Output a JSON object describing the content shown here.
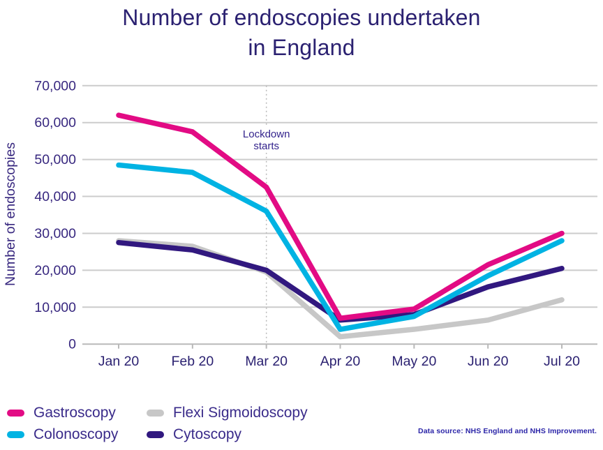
{
  "title": {
    "line1": "Number of endoscopies undertaken",
    "line2": "in England"
  },
  "chart_data": {
    "type": "line",
    "categories": [
      "Jan 20",
      "Feb 20",
      "Mar 20",
      "Apr 20",
      "May 20",
      "Jun 20",
      "Jul 20"
    ],
    "series": [
      {
        "name": "Gastroscopy",
        "color": "#E20B84",
        "values": [
          62000,
          57500,
          42500,
          7000,
          9500,
          21500,
          30000
        ]
      },
      {
        "name": "Colonoscopy",
        "color": "#00B3E3",
        "values": [
          48500,
          46500,
          36000,
          4000,
          7500,
          18500,
          28000
        ]
      },
      {
        "name": "Flexi Sigmoidoscopy",
        "color": "#C7C7C7",
        "values": [
          28000,
          26500,
          19500,
          2000,
          4000,
          6500,
          12000
        ]
      },
      {
        "name": "Cytoscopy",
        "color": "#31187F",
        "values": [
          27500,
          25500,
          20000,
          6500,
          8000,
          15500,
          20500
        ]
      }
    ],
    "draw_order": [
      "Flexi Sigmoidoscopy",
      "Cytoscopy",
      "Colonoscopy",
      "Gastroscopy"
    ],
    "ylabel": "Number of endoscopies",
    "xlabel": "",
    "ylim": [
      0,
      70000
    ],
    "y_ticks": [
      0,
      10000,
      20000,
      30000,
      40000,
      50000,
      60000,
      70000
    ],
    "y_tick_labels": [
      "0",
      "10,000",
      "20,000",
      "30,000",
      "40,000",
      "50,000",
      "60,000",
      "70,000"
    ],
    "grid": true,
    "legend_position": "bottom-left",
    "annotation": {
      "line1": "Lockdown",
      "line2": "starts",
      "x_category": "Mar 20",
      "marker": "dotted-vertical-line"
    }
  },
  "legend": {
    "items": [
      {
        "label": "Gastroscopy",
        "color": "#E20B84"
      },
      {
        "label": "Flexi Sigmoidoscopy",
        "color": "#C7C7C7"
      },
      {
        "label": "Colonoscopy",
        "color": "#00B3E3"
      },
      {
        "label": "Cytoscopy",
        "color": "#31187F"
      }
    ]
  },
  "source_note": "Data source: NHS England and NHS Improvement.",
  "colors": {
    "title_text": "#2B2171",
    "axis_text": "#37277F",
    "x_label_text": "#2B2171",
    "gridline": "#CCCCCC",
    "axis_line": "#B9B9B9",
    "annotation_text": "#33238C",
    "legend_text": "#3A2B8A",
    "source_text": "#2B25A8"
  }
}
